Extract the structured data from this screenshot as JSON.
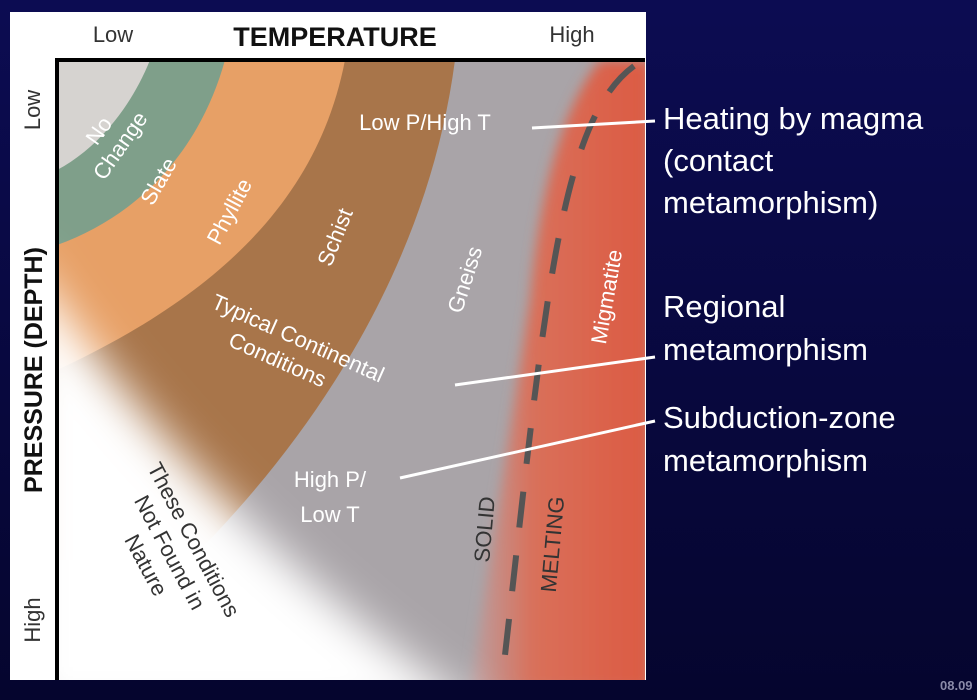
{
  "temperature_axis": {
    "low": "Low",
    "title": "TEMPERATURE",
    "high": "High"
  },
  "pressure_axis": {
    "low": "Low",
    "title": "PRESSURE (DEPTH)",
    "high": "High"
  },
  "zones": {
    "no_change": [
      "No",
      "Change"
    ],
    "slate": "Slate",
    "phyllite": "Phyllite",
    "schist": "Schist",
    "gneiss": "Gneiss",
    "migmatite": "Migmatite"
  },
  "regions": {
    "low_p_high_t": "Low P/High T",
    "typical": [
      "Typical Continental",
      "Conditions"
    ],
    "high_p_low_t": [
      "High P/",
      "Low T"
    ],
    "not_found": [
      "These Conditions",
      "Not Found in",
      "Nature"
    ],
    "solid": "SOLID",
    "melting": "MELTING"
  },
  "callouts": {
    "contact": [
      "Heating by magma",
      "(contact",
      "metamorphism)"
    ],
    "regional": [
      "Regional",
      "metamorphism"
    ],
    "subduction": [
      "Subduction-zone",
      "metamorphism"
    ]
  },
  "figure_number": "08.09"
}
